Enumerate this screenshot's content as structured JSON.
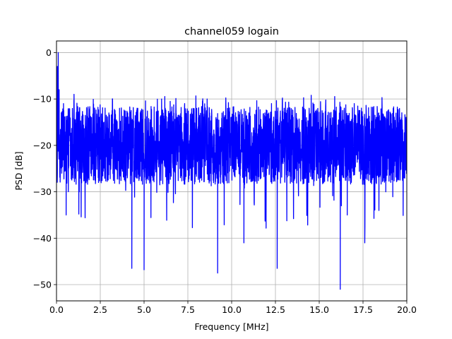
{
  "chart_data": {
    "type": "line",
    "title": "channel059 logain",
    "xlabel": "Frequency [MHz]",
    "ylabel": "PSD [dB]",
    "xlim": [
      0,
      20
    ],
    "ylim": [
      -53.5,
      2.5
    ],
    "xticks": [
      0,
      2.5,
      5,
      7.5,
      10,
      12.5,
      15,
      17.5,
      20
    ],
    "xtick_labels": [
      "0.0",
      "2.5",
      "5.0",
      "7.5",
      "10.0",
      "12.5",
      "15.0",
      "17.5",
      "20.0"
    ],
    "yticks": [
      0,
      -10,
      -20,
      -30,
      -40,
      -50
    ],
    "ytick_labels": [
      "0",
      "−10",
      "−20",
      "−30",
      "−40",
      "−50"
    ],
    "grid": true,
    "series": [
      {
        "color": "#0000ff",
        "noise_floor_db": -20,
        "upper_envelope_db": -12,
        "lower_envelope_db": -26,
        "x": [
          0.0,
          0.05,
          0.1,
          0.15,
          0.2,
          0.3,
          0.4,
          0.55,
          0.7,
          1.0,
          1.3,
          1.6,
          2.0,
          2.4,
          2.9,
          3.2,
          3.6,
          4.1,
          4.3,
          4.6,
          5.0,
          5.5,
          6.0,
          6.4,
          7.0,
          7.7,
          8.1,
          8.6,
          9.2,
          9.6,
          10.2,
          10.7,
          11.3,
          11.9,
          12.3,
          12.6,
          13.0,
          13.5,
          14.1,
          14.6,
          15.2,
          15.6,
          16.0,
          16.2,
          16.6,
          17.0,
          17.6,
          18.0,
          18.4,
          18.8,
          19.2,
          19.6,
          20.0
        ],
        "y": [
          -15,
          -3,
          0,
          -8,
          -19,
          -26,
          -11,
          -35,
          -18,
          -9,
          -30,
          -20,
          -14,
          -28,
          -19,
          -10,
          -26,
          -20,
          -46.5,
          -12,
          -46.8,
          -22,
          -10,
          -25,
          -20,
          -13,
          -27,
          -10,
          -47.5,
          -17,
          -20,
          -41,
          -20,
          -13,
          -19,
          -46.5,
          -12,
          -28,
          -20,
          -16,
          -22,
          -13,
          -20,
          -51,
          -35,
          -11,
          -41,
          -19,
          -13,
          -30,
          -18,
          -14,
          -22
        ]
      }
    ]
  }
}
